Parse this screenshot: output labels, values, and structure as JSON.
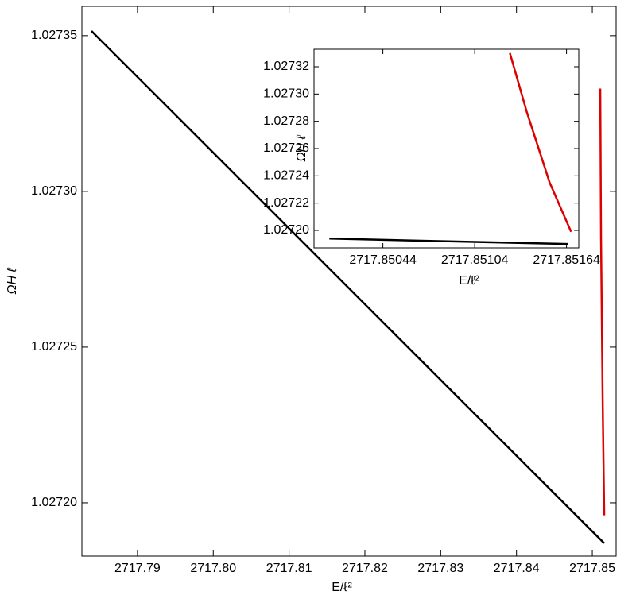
{
  "chart_data": [
    {
      "type": "line",
      "x_label": "E/ℓ²",
      "y_label": "ΩH ℓ",
      "xlim": [
        2717.78267,
        2717.85314
      ],
      "ylim": [
        1.0271829,
        1.0273594
      ],
      "xticks": [
        2717.79,
        {
          "value": 2717.8,
          "label": "2717.80"
        },
        2717.81,
        2717.82,
        2717.83,
        2717.84,
        2717.85
      ],
      "yticks": [
        {
          "value": 1.0272,
          "label": "1.02720"
        },
        1.02725,
        {
          "value": 1.0273,
          "label": "1.02730"
        },
        1.02735
      ],
      "series": [
        {
          "color": "#000000",
          "x": [
            2717.78393,
            2717.85157
          ],
          "values": [
            1.0273515,
            1.027187
          ]
        },
        {
          "color": "#dd0000",
          "x": [
            2717.85105,
            2717.85115,
            2717.85136,
            2717.85157
          ],
          "values": [
            1.027333,
            1.027285,
            1.027234,
            1.027196
          ]
        }
      ]
    },
    {
      "type": "line",
      "x_label": "E/ℓ²",
      "y_label": "ΩH ℓ",
      "xlim": [
        2717.84999,
        2717.85172
      ],
      "ylim": [
        1.02718719,
        1.02733281
      ],
      "xticks": [
        2717.85044,
        2717.85104,
        2717.85164
      ],
      "yticks": [
        {
          "value": 1.0272,
          "label": "1.02720"
        },
        1.02722,
        1.02724,
        1.02726,
        1.02728,
        {
          "value": 1.0273,
          "label": "1.02730"
        },
        1.02732
      ],
      "series": [
        {
          "color": "#000000",
          "x": [
            2717.85009,
            2717.85165
          ],
          "values": [
            1.027194,
            1.02719
          ]
        },
        {
          "color": "#dd0000",
          "x": [
            2717.85127,
            2717.85138,
            2717.85153,
            2717.85167
          ],
          "values": [
            1.02733,
            1.027287,
            1.027235,
            1.027199
          ]
        }
      ]
    }
  ]
}
